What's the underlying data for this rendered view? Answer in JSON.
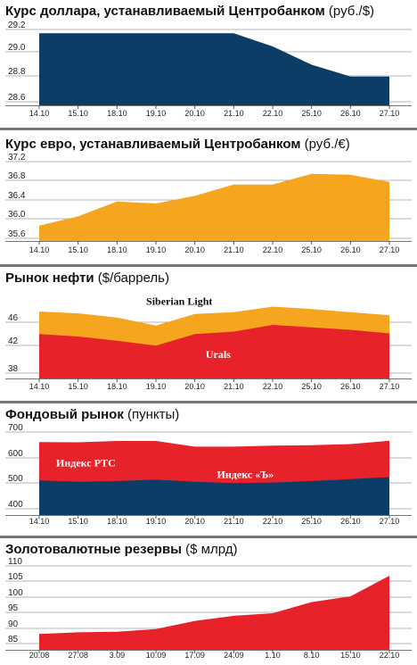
{
  "chart_data": [
    {
      "type": "area",
      "title": "Курс доллара, устанавливаемый Центробанком",
      "title_unit": "(руб./$)",
      "categories": [
        "14.10",
        "15.10",
        "18.10",
        "19.10",
        "20.10",
        "21.10",
        "22.10",
        "25.10",
        "26.10",
        "27.10"
      ],
      "yticks": [
        "29.2",
        "29.0",
        "28.8",
        "28.6"
      ],
      "ylim": [
        28.6,
        29.2
      ],
      "series": [
        {
          "values": [
            29.15,
            29.15,
            29.15,
            29.15,
            29.15,
            29.15,
            29.05,
            28.91,
            28.82,
            28.82
          ],
          "color": "#0b3d66"
        }
      ],
      "labels": []
    },
    {
      "type": "area",
      "title": "Курс евро, устанавливаемый Центробанком",
      "title_unit": "(руб./€)",
      "categories": [
        "14.10",
        "15.10",
        "18.10",
        "19.10",
        "20.10",
        "21.10",
        "22.10",
        "25.10",
        "26.10",
        "27.10"
      ],
      "yticks": [
        "37.2",
        "36.8",
        "36.4",
        "36.0",
        "35.6"
      ],
      "ylim": [
        35.6,
        37.2
      ],
      "series": [
        {
          "values": [
            35.9,
            36.08,
            36.37,
            36.33,
            36.48,
            36.7,
            36.7,
            36.91,
            36.89,
            36.75
          ],
          "color": "#f5a51e"
        }
      ],
      "labels": []
    },
    {
      "type": "area",
      "title": "Рынок нефти",
      "title_unit": "($/баррель)",
      "categories": [
        "14.10",
        "15.10",
        "18.10",
        "19.10",
        "20.10",
        "21.10",
        "22.10",
        "25.10",
        "26.10",
        "27.10"
      ],
      "yticks": [
        "46",
        "42",
        "38"
      ],
      "ylim": [
        36.2,
        49.4
      ],
      "series": [
        {
          "name": "Siberian Light",
          "values": [
            47.2,
            46.9,
            46.2,
            44.9,
            46.8,
            47.1,
            48.0,
            47.6,
            47.1,
            46.6
          ],
          "color": "#f5a51e"
        },
        {
          "name": "Urals",
          "values": [
            43.5,
            43.1,
            42.4,
            41.6,
            43.5,
            43.9,
            45.0,
            44.6,
            44.2,
            43.6
          ],
          "color": "#e8222a"
        }
      ],
      "labels": [
        {
          "text": "Siberian Light",
          "at": [
            3.6,
            48.3
          ],
          "color": "#111111"
        },
        {
          "text": "Urals",
          "at": [
            4.6,
            39.6
          ],
          "color": "#ffffff"
        }
      ]
    },
    {
      "type": "area",
      "title": "Фондовый рынок",
      "title_unit": "(пункты)",
      "categories": [
        "14.10",
        "15.10",
        "18.10",
        "19.10",
        "20.10",
        "21.10",
        "22.10",
        "25.10",
        "26.10",
        "27.10"
      ],
      "yticks": [
        "700",
        "600",
        "500",
        "400"
      ],
      "ylim": [
        372,
        712
      ],
      "series": [
        {
          "name": "Индекс РТС",
          "values": [
            653,
            652,
            657,
            657,
            635,
            635,
            639,
            641,
            645,
            658
          ],
          "color": "#e8222a"
        },
        {
          "name": "Индекс «Ъ»",
          "values": [
            505,
            500,
            503,
            508,
            500,
            495,
            497,
            503,
            510,
            518
          ],
          "color": "#0b3d66"
        }
      ],
      "labels": [
        {
          "text": "Индекс РТС",
          "at": [
            1.2,
            560
          ],
          "color": "#ffffff"
        },
        {
          "text": "Индекс «Ъ»",
          "at": [
            5.3,
            514
          ],
          "color": "#ffffff"
        }
      ]
    },
    {
      "type": "area",
      "title": "Золотовалютные резервы",
      "title_unit": "($ млрд)",
      "categories": [
        "20.08",
        "27.08",
        "3.09",
        "10.09",
        "17.09",
        "24.09",
        "1.10",
        "8.10",
        "15.10",
        "22.10"
      ],
      "yticks": [
        "110",
        "105",
        "100",
        "95",
        "90",
        "85"
      ],
      "ylim": [
        82.5,
        110
      ],
      "series": [
        {
          "values": [
            87.5,
            88.0,
            88.2,
            89.0,
            91.6,
            93.2,
            94.0,
            97.5,
            99.3,
            105.8
          ],
          "color": "#e8222a"
        }
      ],
      "labels": []
    }
  ]
}
